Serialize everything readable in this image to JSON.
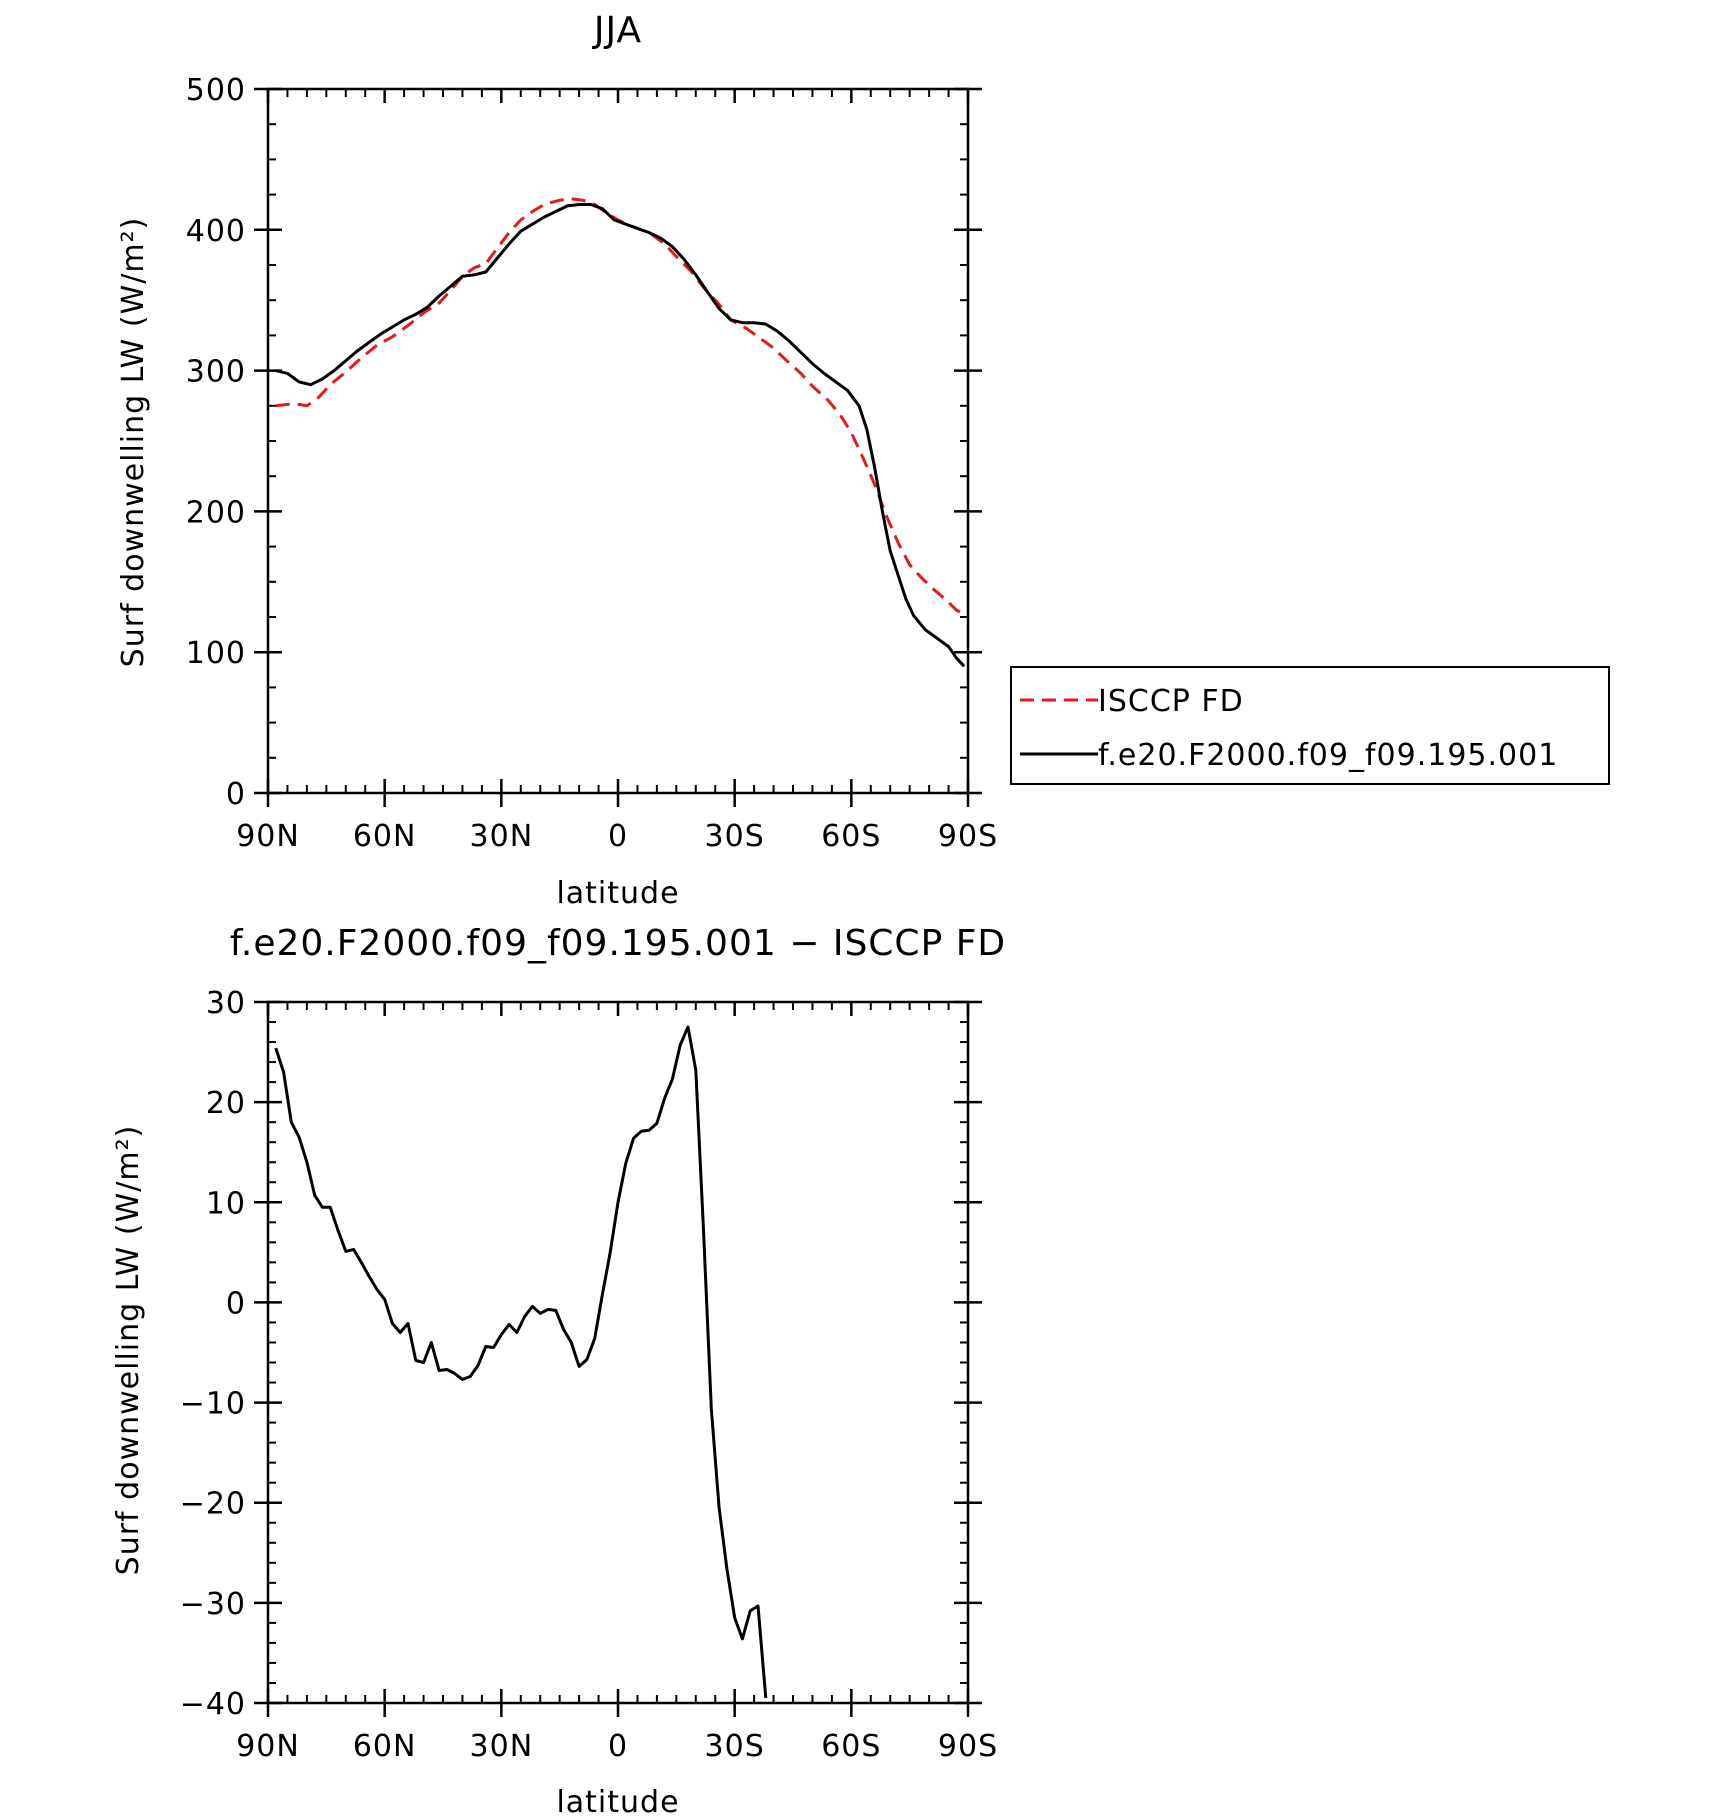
{
  "chart_data": [
    {
      "type": "line",
      "title": "JJA",
      "xlabel": "latitude",
      "ylabel": "Surf downwelling LW (W/m²)",
      "xlim": [
        90,
        -90
      ],
      "ylim": [
        0,
        500
      ],
      "x_ticks": [
        {
          "value": 90,
          "label": "90N"
        },
        {
          "value": 60,
          "label": "60N"
        },
        {
          "value": 30,
          "label": "30N"
        },
        {
          "value": 0,
          "label": "0"
        },
        {
          "value": -30,
          "label": "30S"
        },
        {
          "value": -60,
          "label": "60S"
        },
        {
          "value": -90,
          "label": "90S"
        }
      ],
      "y_ticks": [
        {
          "value": 0,
          "label": "0"
        },
        {
          "value": 100,
          "label": "100"
        },
        {
          "value": 200,
          "label": "200"
        },
        {
          "value": 300,
          "label": "300"
        },
        {
          "value": 400,
          "label": "400"
        },
        {
          "value": 500,
          "label": "500"
        }
      ],
      "legend": {
        "placement": "right-outside"
      },
      "series": [
        {
          "name": "ISCCP FD",
          "color": "#e41a1c",
          "style": "dashed",
          "points": [
            [
              88,
              275
            ],
            [
              85,
              276
            ],
            [
              82,
              276
            ],
            [
              80,
              275
            ],
            [
              77,
              281
            ],
            [
              74,
              290
            ],
            [
              70,
              299
            ],
            [
              66,
              309
            ],
            [
              62,
              318
            ],
            [
              58,
              324
            ],
            [
              54,
              332
            ],
            [
              50,
              341
            ],
            [
              46,
              348
            ],
            [
              43,
              357
            ],
            [
              40,
              367
            ],
            [
              37,
              373
            ],
            [
              34,
              376
            ],
            [
              31,
              387
            ],
            [
              28,
              398
            ],
            [
              25,
              407
            ],
            [
              22,
              413
            ],
            [
              19,
              418
            ],
            [
              15,
              421
            ],
            [
              12,
              422
            ],
            [
              9,
              421
            ],
            [
              6,
              418
            ],
            [
              3,
              412
            ],
            [
              0,
              407
            ],
            [
              -3,
              403
            ],
            [
              -6,
              400
            ],
            [
              -9,
              396
            ],
            [
              -12,
              390
            ],
            [
              -15,
              381
            ],
            [
              -19,
              370
            ],
            [
              -22,
              359
            ],
            [
              -26,
              347
            ],
            [
              -29,
              336
            ],
            [
              -33,
              330
            ],
            [
              -36,
              324
            ],
            [
              -40,
              316
            ],
            [
              -43,
              308
            ],
            [
              -47,
              298
            ],
            [
              -50,
              289
            ],
            [
              -54,
              279
            ],
            [
              -57,
              269
            ],
            [
              -60,
              256
            ],
            [
              -63,
              238
            ],
            [
              -66,
              219
            ],
            [
              -69,
              197
            ],
            [
              -72,
              178
            ],
            [
              -75,
              162
            ],
            [
              -78,
              153
            ],
            [
              -81,
              145
            ],
            [
              -84,
              138
            ],
            [
              -87,
              130
            ],
            [
              -89,
              127
            ]
          ]
        },
        {
          "name": "f.e20.F2000.f09_f09.195.001",
          "color": "#000000",
          "style": "solid",
          "points": [
            [
              88,
              300
            ],
            [
              85,
              298
            ],
            [
              82,
              292
            ],
            [
              79,
              290
            ],
            [
              76,
              294
            ],
            [
              73,
              300
            ],
            [
              70,
              307
            ],
            [
              67,
              314
            ],
            [
              64,
              320
            ],
            [
              61,
              326
            ],
            [
              58,
              331
            ],
            [
              55,
              336
            ],
            [
              52,
              340
            ],
            [
              49,
              345
            ],
            [
              46,
              353
            ],
            [
              43,
              360
            ],
            [
              40,
              367
            ],
            [
              37,
              368
            ],
            [
              34,
              370
            ],
            [
              31,
              380
            ],
            [
              28,
              390
            ],
            [
              25,
              399
            ],
            [
              22,
              404
            ],
            [
              19,
              409
            ],
            [
              16,
              413
            ],
            [
              13,
              417
            ],
            [
              10,
              418
            ],
            [
              7,
              418
            ],
            [
              4,
              415
            ],
            [
              1,
              407
            ],
            [
              -2,
              404
            ],
            [
              -5,
              401
            ],
            [
              -8,
              398
            ],
            [
              -11,
              394
            ],
            [
              -14,
              388
            ],
            [
              -17,
              379
            ],
            [
              -20,
              368
            ],
            [
              -23,
              356
            ],
            [
              -26,
              344
            ],
            [
              -29,
              336
            ],
            [
              -32,
              334
            ],
            [
              -35,
              334
            ],
            [
              -38,
              333
            ],
            [
              -41,
              328
            ],
            [
              -44,
              321
            ],
            [
              -47,
              313
            ],
            [
              -50,
              305
            ],
            [
              -53,
              298
            ],
            [
              -56,
              292
            ],
            [
              -59,
              286
            ],
            [
              -62,
              275
            ],
            [
              -64,
              258
            ],
            [
              -66,
              231
            ],
            [
              -68,
              200
            ],
            [
              -70,
              172
            ],
            [
              -72,
              155
            ],
            [
              -74,
              138
            ],
            [
              -76,
              126
            ],
            [
              -79,
              116
            ],
            [
              -82,
              110
            ],
            [
              -85,
              104
            ],
            [
              -87,
              96
            ],
            [
              -89,
              90
            ]
          ]
        }
      ]
    },
    {
      "type": "line",
      "title": "f.e20.F2000.f09_f09.195.001 − ISCCP FD",
      "xlabel": "latitude",
      "ylabel": "Surf downwelling LW (W/m²)",
      "xlim": [
        90,
        -90
      ],
      "ylim": [
        -40,
        30
      ],
      "x_ticks": [
        {
          "value": 90,
          "label": "90N"
        },
        {
          "value": 60,
          "label": "60N"
        },
        {
          "value": 30,
          "label": "30N"
        },
        {
          "value": 0,
          "label": "0"
        },
        {
          "value": -30,
          "label": "30S"
        },
        {
          "value": -60,
          "label": "60S"
        },
        {
          "value": -90,
          "label": "90S"
        }
      ],
      "y_ticks": [
        {
          "value": -40,
          "label": "−40"
        },
        {
          "value": -30,
          "label": "−30"
        },
        {
          "value": -20,
          "label": "−20"
        },
        {
          "value": -10,
          "label": "−10"
        },
        {
          "value": 0,
          "label": "0"
        },
        {
          "value": 10,
          "label": "10"
        },
        {
          "value": 20,
          "label": "20"
        },
        {
          "value": 30,
          "label": "30"
        }
      ],
      "series": [
        {
          "color": "#000000",
          "style": "solid",
          "points": [
            [
              88,
              25.4
            ],
            [
              86,
              23
            ],
            [
              84,
              18
            ],
            [
              82,
              16.5
            ],
            [
              80,
              14
            ],
            [
              78,
              10.7
            ],
            [
              76,
              9.5
            ],
            [
              74,
              9.5
            ],
            [
              72,
              7.2
            ],
            [
              70,
              5.1
            ],
            [
              68,
              5.3
            ],
            [
              66,
              4
            ],
            [
              64,
              2.6
            ],
            [
              62,
              1.3
            ],
            [
              60,
              0.3
            ],
            [
              58,
              -2.1
            ],
            [
              56,
              -3
            ],
            [
              54,
              -2.1
            ],
            [
              52,
              -5.8
            ],
            [
              50,
              -6
            ],
            [
              48,
              -4
            ],
            [
              46,
              -6.8
            ],
            [
              44,
              -6.7
            ],
            [
              42,
              -7.1
            ],
            [
              40,
              -7.7
            ],
            [
              38,
              -7.4
            ],
            [
              36,
              -6.3
            ],
            [
              34,
              -4.4
            ],
            [
              32,
              -4.5
            ],
            [
              30,
              -3.2
            ],
            [
              28,
              -2.2
            ],
            [
              26,
              -3
            ],
            [
              24,
              -1.4
            ],
            [
              22,
              -0.4
            ],
            [
              20,
              -1.1
            ],
            [
              18,
              -0.7
            ],
            [
              16,
              -0.8
            ],
            [
              14,
              -2.7
            ],
            [
              12,
              -4
            ],
            [
              10,
              -6.4
            ],
            [
              8,
              -5.7
            ],
            [
              6,
              -3.6
            ],
            [
              4,
              0.8
            ],
            [
              2,
              5
            ],
            [
              0,
              10
            ],
            [
              -2,
              13.9
            ],
            [
              -4,
              16.4
            ],
            [
              -6,
              17.1
            ],
            [
              -8,
              17.2
            ],
            [
              -10,
              17.9
            ],
            [
              -12,
              20.4
            ],
            [
              -14,
              22.3
            ],
            [
              -16,
              25.7
            ],
            [
              -18,
              27.5
            ],
            [
              -20,
              23.2
            ],
            [
              -22,
              7
            ],
            [
              -24,
              -10.6
            ],
            [
              -26,
              -20.5
            ],
            [
              -28,
              -26.6
            ],
            [
              -30,
              -31.5
            ],
            [
              -32,
              -33.6
            ],
            [
              -34,
              -30.8
            ],
            [
              -36,
              -30.3
            ],
            [
              -38,
              -39.5
            ]
          ]
        }
      ]
    }
  ]
}
